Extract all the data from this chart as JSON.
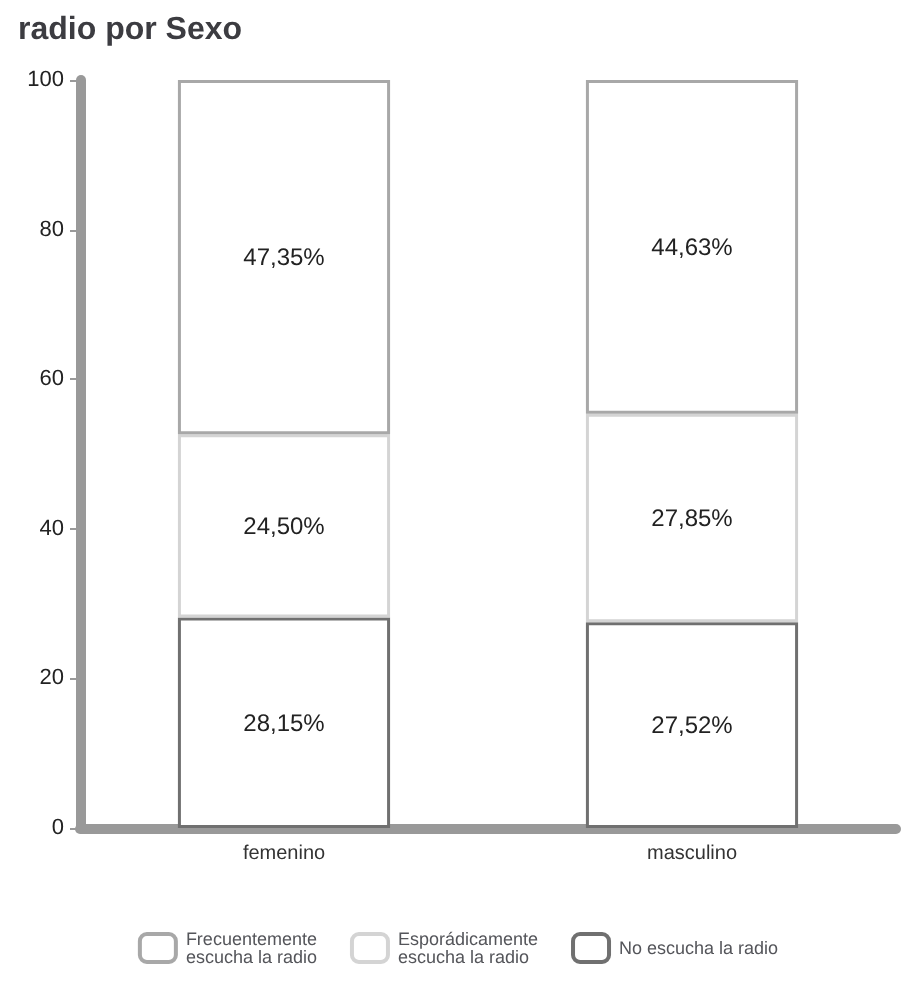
{
  "chart_data": {
    "type": "bar",
    "title": "radio por Sexo",
    "categories": [
      "femenino",
      "masculino"
    ],
    "stacked": true,
    "series": [
      {
        "name": "No escucha la radio",
        "color": "#707070",
        "values": [
          28.15,
          27.52
        ],
        "value_labels": [
          "28,15%",
          "27,52%"
        ]
      },
      {
        "name": "Esporádicamente escucha la radio",
        "color": "#d4d4d4",
        "values": [
          24.5,
          27.85
        ],
        "value_labels": [
          "24,50%",
          "27,85%"
        ]
      },
      {
        "name": "Frecuentemente escucha la radio",
        "color": "#a8a8a8",
        "values": [
          47.35,
          44.63
        ],
        "value_labels": [
          "47,35%",
          "44,63%"
        ]
      }
    ],
    "ylim": [
      0,
      100
    ],
    "yticks": [
      0,
      20,
      40,
      60,
      80,
      100
    ],
    "grid": false,
    "legend": "bottom"
  }
}
